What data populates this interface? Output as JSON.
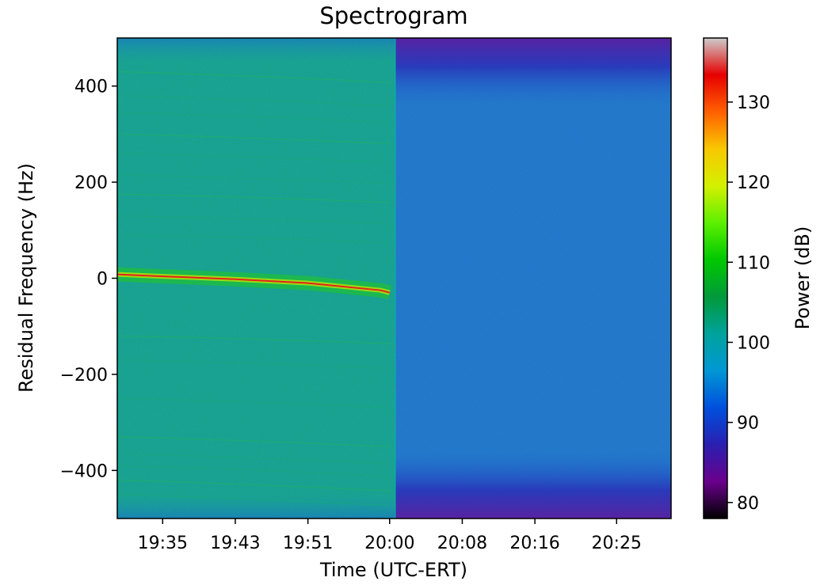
{
  "chart_data": {
    "type": "heatmap",
    "title": "Spectrogram",
    "xlabel": "Time (UTC-ERT)",
    "ylabel": "Residual Frequency (Hz)",
    "x_ticks": [
      "19:35",
      "19:43",
      "19:51",
      "20:00",
      "20:08",
      "20:16",
      "20:25"
    ],
    "x_range": [
      "19:30",
      "20:31"
    ],
    "y_ticks": [
      400,
      200,
      0,
      -200,
      -400
    ],
    "y_tick_labels": [
      "400",
      "200",
      "0",
      "−200",
      "−400"
    ],
    "ylim": [
      -500,
      500
    ],
    "colorbar": {
      "label": "Power (dB)",
      "ticks": [
        80,
        90,
        100,
        110,
        120,
        130
      ],
      "range": [
        78,
        138
      ],
      "colormap": "nipy_spectral",
      "colors": [
        "#000000",
        "#6a008c",
        "#2a1fb0",
        "#0050dd",
        "#0097d4",
        "#00a29c",
        "#009a3a",
        "#00c800",
        "#5cf000",
        "#d4f000",
        "#f8c800",
        "#ff6000",
        "#e60000",
        "#cccccc"
      ]
    },
    "segments": [
      {
        "x_range": [
          "19:30",
          "20:00"
        ],
        "background_db": 101,
        "description_color": "#1aa08e"
      },
      {
        "x_range": [
          "20:00",
          "20:31"
        ],
        "background_db": 95,
        "edge_db": 86
      }
    ],
    "carrier": {
      "x": [
        "19:30",
        "19:35",
        "19:43",
        "19:51",
        "19:59",
        "20:00"
      ],
      "y": [
        8,
        4,
        -2,
        -10,
        -25,
        -30
      ],
      "peak_db": 132
    }
  }
}
